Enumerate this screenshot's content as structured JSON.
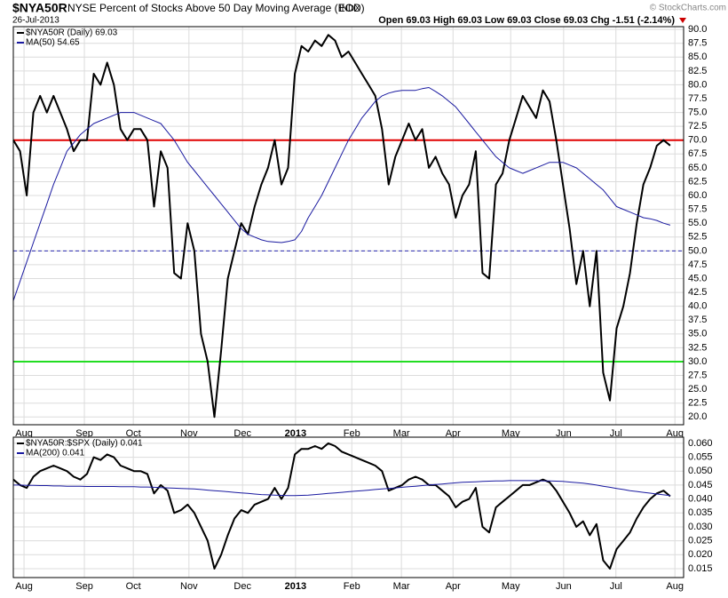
{
  "header": {
    "symbol": "$NYA50R",
    "title": "NYSE Percent of Stocks Above 50 Day Moving Average (EOD)",
    "exchange": "INDX",
    "date": "26-Jul-2013",
    "quote": "Open 69.03  High 69.03  Low 69.03  Close 69.03  Chg -1.51 (-2.14%)",
    "copyright": "© StockCharts.com"
  },
  "chart_data": [
    {
      "type": "line",
      "grid": true,
      "xlim": [
        0,
        100
      ],
      "ylim": [
        18.6,
        90.5
      ],
      "xticks": [
        {
          "value": 1.6,
          "label": "Aug"
        },
        {
          "value": 10.6,
          "label": "Sep"
        },
        {
          "value": 17.9,
          "label": "Oct"
        },
        {
          "value": 26.2,
          "label": "Nov"
        },
        {
          "value": 34.2,
          "label": "Dec"
        },
        {
          "value": 42.1,
          "label": "2013"
        },
        {
          "value": 50.5,
          "label": "Feb"
        },
        {
          "value": 57.9,
          "label": "Mar"
        },
        {
          "value": 65.6,
          "label": "Apr"
        },
        {
          "value": 74.2,
          "label": "May"
        },
        {
          "value": 82.1,
          "label": "Jun"
        },
        {
          "value": 89.9,
          "label": "Jul"
        },
        {
          "value": 98.7,
          "label": "Aug"
        }
      ],
      "yticks": [
        {
          "value": 20,
          "label": "20.0"
        },
        {
          "value": 22.5,
          "label": "22.5"
        },
        {
          "value": 25,
          "label": "25.0"
        },
        {
          "value": 27.5,
          "label": "27.5"
        },
        {
          "value": 30,
          "label": "30.0"
        },
        {
          "value": 32.5,
          "label": "32.5"
        },
        {
          "value": 35,
          "label": "35.0"
        },
        {
          "value": 37.5,
          "label": "37.5"
        },
        {
          "value": 40,
          "label": "40.0"
        },
        {
          "value": 42.5,
          "label": "42.5"
        },
        {
          "value": 45,
          "label": "45.0"
        },
        {
          "value": 47.5,
          "label": "47.5"
        },
        {
          "value": 50,
          "label": "50.0"
        },
        {
          "value": 52.5,
          "label": "52.5"
        },
        {
          "value": 55,
          "label": "55.0"
        },
        {
          "value": 57.5,
          "label": "57.5"
        },
        {
          "value": 60,
          "label": "60.0"
        },
        {
          "value": 62.5,
          "label": "62.5"
        },
        {
          "value": 65,
          "label": "65.0"
        },
        {
          "value": 67.5,
          "label": "67.5"
        },
        {
          "value": 70,
          "label": "70.0"
        },
        {
          "value": 72.5,
          "label": "72.5"
        },
        {
          "value": 75,
          "label": "75.0"
        },
        {
          "value": 77.5,
          "label": "77.5"
        },
        {
          "value": 80,
          "label": "80.0"
        },
        {
          "value": 82.5,
          "label": "82.5"
        },
        {
          "value": 85,
          "label": "85.0"
        },
        {
          "value": 87.5,
          "label": "87.5"
        },
        {
          "value": 90,
          "label": "90.0"
        }
      ],
      "hlines": [
        {
          "value": 70,
          "color": "#e00000",
          "style": "solid"
        },
        {
          "value": 50,
          "color": "#2828b0",
          "style": "dashed"
        },
        {
          "value": 30,
          "color": "#22dd22",
          "style": "solid"
        }
      ],
      "series": [
        {
          "name": "$NYA50R (Daily) 69.03",
          "color": "#000000",
          "width": 2,
          "values": [
            70,
            68,
            60,
            75,
            78,
            75,
            78,
            75,
            72,
            68,
            70,
            70,
            82,
            80,
            84,
            80,
            72,
            70,
            72,
            72,
            70,
            58,
            68,
            65,
            46,
            45,
            55,
            50,
            35,
            30,
            20,
            32,
            45,
            50,
            55,
            53,
            58,
            62,
            65,
            70,
            62,
            65,
            82,
            87,
            86,
            88,
            87,
            89,
            88,
            85,
            86,
            84,
            82,
            80,
            78,
            72,
            62,
            67,
            70,
            73,
            70,
            72,
            65,
            67,
            64,
            62,
            56,
            60,
            62,
            68,
            46,
            45,
            62,
            64,
            70,
            74,
            78,
            76,
            74,
            79,
            77,
            70,
            62,
            54,
            44,
            50,
            40,
            50,
            28,
            23,
            36,
            40,
            46,
            55,
            62,
            65,
            69,
            70,
            69.03
          ]
        },
        {
          "name": "MA(50) 54.65",
          "color": "#1a1aa0",
          "width": 1,
          "values": [
            41,
            44.5,
            48,
            51.5,
            55,
            58.5,
            62,
            65,
            68,
            69.5,
            71,
            72,
            73,
            73.5,
            74,
            74.5,
            75,
            75,
            75,
            74.5,
            74,
            73.5,
            73,
            71.5,
            70,
            68,
            66,
            64.5,
            63,
            61.5,
            60,
            58.5,
            57,
            55.5,
            54,
            53,
            52.5,
            52,
            51.7,
            51.6,
            51.5,
            51.7,
            52,
            53.5,
            56,
            58,
            60,
            62.5,
            65,
            67.5,
            70,
            72,
            74,
            75.5,
            77,
            78,
            78.5,
            78.8,
            79,
            79,
            79,
            79.3,
            79.5,
            78.8,
            78,
            77,
            76,
            74.5,
            73,
            71.5,
            70,
            68.5,
            67,
            66,
            65,
            64.5,
            64,
            64.5,
            65,
            65.5,
            66,
            66,
            66,
            65.5,
            65,
            64,
            63,
            62,
            61,
            59.5,
            58,
            57.5,
            57,
            56.5,
            56,
            55.8,
            55.5,
            55,
            54.65
          ]
        }
      ]
    },
    {
      "type": "line",
      "grid": true,
      "xlim": [
        0,
        100
      ],
      "ylim": [
        0.0118,
        0.0622
      ],
      "xticks": [
        {
          "value": 1.6,
          "label": "Aug"
        },
        {
          "value": 10.6,
          "label": "Sep"
        },
        {
          "value": 17.9,
          "label": "Oct"
        },
        {
          "value": 26.2,
          "label": "Nov"
        },
        {
          "value": 34.2,
          "label": "Dec"
        },
        {
          "value": 42.1,
          "label": "2013"
        },
        {
          "value": 50.5,
          "label": "Feb"
        },
        {
          "value": 57.9,
          "label": "Mar"
        },
        {
          "value": 65.6,
          "label": "Apr"
        },
        {
          "value": 74.2,
          "label": "May"
        },
        {
          "value": 82.1,
          "label": "Jun"
        },
        {
          "value": 89.9,
          "label": "Jul"
        },
        {
          "value": 98.7,
          "label": "Aug"
        }
      ],
      "yticks": [
        {
          "value": 0.015,
          "label": "0.015"
        },
        {
          "value": 0.02,
          "label": "0.020"
        },
        {
          "value": 0.025,
          "label": "0.025"
        },
        {
          "value": 0.03,
          "label": "0.030"
        },
        {
          "value": 0.035,
          "label": "0.035"
        },
        {
          "value": 0.04,
          "label": "0.040"
        },
        {
          "value": 0.045,
          "label": "0.045"
        },
        {
          "value": 0.05,
          "label": "0.050"
        },
        {
          "value": 0.055,
          "label": "0.055"
        },
        {
          "value": 0.06,
          "label": "0.060"
        }
      ],
      "series": [
        {
          "name": "$NYA50R:$SPX (Daily) 0.041",
          "color": "#000000",
          "width": 2,
          "values": [
            0.047,
            0.045,
            0.044,
            0.048,
            0.05,
            0.051,
            0.052,
            0.051,
            0.05,
            0.048,
            0.047,
            0.049,
            0.055,
            0.054,
            0.056,
            0.055,
            0.052,
            0.051,
            0.05,
            0.05,
            0.049,
            0.042,
            0.045,
            0.043,
            0.035,
            0.036,
            0.038,
            0.035,
            0.03,
            0.025,
            0.015,
            0.02,
            0.027,
            0.033,
            0.036,
            0.035,
            0.038,
            0.039,
            0.04,
            0.044,
            0.04,
            0.044,
            0.056,
            0.058,
            0.058,
            0.059,
            0.058,
            0.06,
            0.059,
            0.057,
            0.056,
            0.055,
            0.054,
            0.053,
            0.052,
            0.05,
            0.043,
            0.044,
            0.045,
            0.047,
            0.048,
            0.047,
            0.045,
            0.045,
            0.043,
            0.041,
            0.037,
            0.039,
            0.04,
            0.044,
            0.03,
            0.028,
            0.037,
            0.039,
            0.041,
            0.043,
            0.045,
            0.045,
            0.046,
            0.047,
            0.046,
            0.043,
            0.039,
            0.035,
            0.03,
            0.032,
            0.027,
            0.031,
            0.018,
            0.015,
            0.022,
            0.025,
            0.028,
            0.033,
            0.037,
            0.04,
            0.042,
            0.043,
            0.041
          ]
        },
        {
          "name": "MA(200) 0.041",
          "color": "#1a1aa0",
          "width": 1,
          "values": [
            0.045,
            0.045,
            0.0449,
            0.0449,
            0.0448,
            0.0448,
            0.0447,
            0.0447,
            0.0446,
            0.0446,
            0.0446,
            0.0445,
            0.0445,
            0.0445,
            0.0445,
            0.0445,
            0.0444,
            0.0444,
            0.0444,
            0.0443,
            0.0443,
            0.0442,
            0.0441,
            0.044,
            0.0439,
            0.0438,
            0.0437,
            0.0436,
            0.0434,
            0.0432,
            0.043,
            0.0428,
            0.0426,
            0.0424,
            0.0422,
            0.042,
            0.0418,
            0.0416,
            0.0415,
            0.0414,
            0.0413,
            0.0412,
            0.0412,
            0.0413,
            0.0414,
            0.0416,
            0.0418,
            0.042,
            0.0422,
            0.0424,
            0.0426,
            0.0428,
            0.043,
            0.0432,
            0.0434,
            0.0436,
            0.0438,
            0.044,
            0.0442,
            0.0444,
            0.0446,
            0.0448,
            0.045,
            0.0452,
            0.0454,
            0.0456,
            0.0458,
            0.046,
            0.0461,
            0.0462,
            0.0463,
            0.0464,
            0.0465,
            0.0465,
            0.0466,
            0.0466,
            0.0466,
            0.0466,
            0.0466,
            0.0465,
            0.0465,
            0.0464,
            0.0463,
            0.0461,
            0.0459,
            0.0457,
            0.0454,
            0.045,
            0.0446,
            0.0442,
            0.0438,
            0.0434,
            0.043,
            0.0427,
            0.0424,
            0.0421,
            0.0418,
            0.0415,
            0.0412
          ]
        }
      ]
    }
  ]
}
